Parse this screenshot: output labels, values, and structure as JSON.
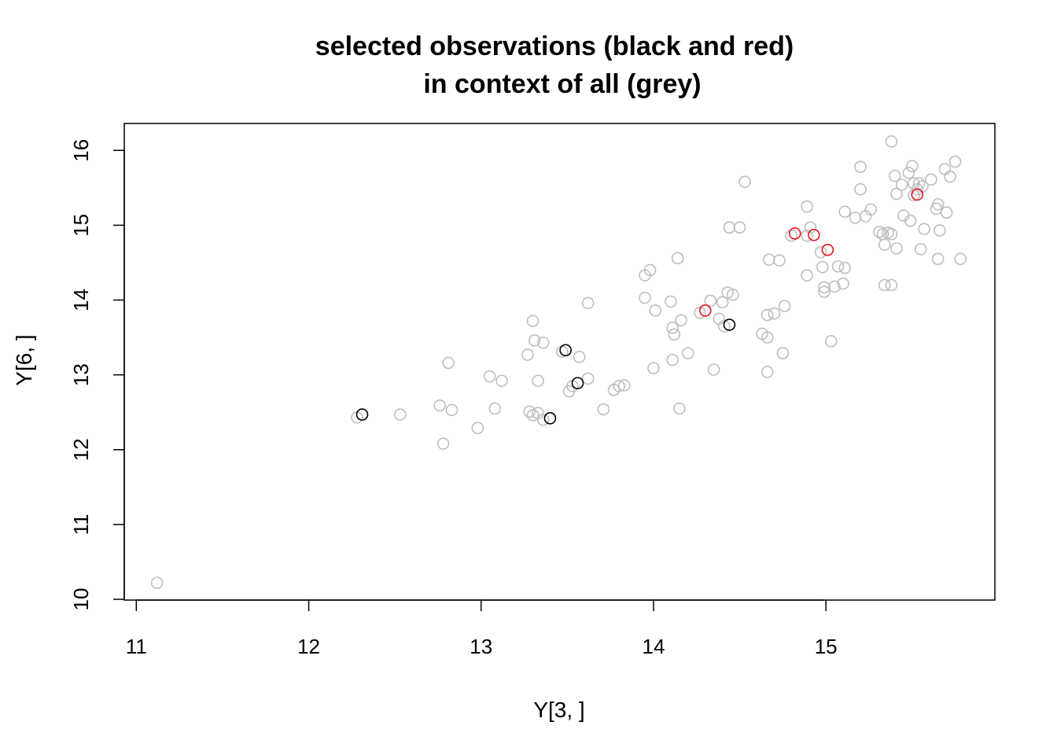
{
  "chart_data": {
    "type": "scatter",
    "title_line1": "selected observations (black and red)",
    "title_line2": "in context of all (grey)",
    "xlabel": "Y[3, ]",
    "ylabel": "Y[6, ]",
    "xlim": [
      10.93,
      15.98
    ],
    "ylim": [
      9.99,
      16.36
    ],
    "x_ticks": [
      "11",
      "12",
      "13",
      "14",
      "15"
    ],
    "y_ticks": [
      "10",
      "11",
      "12",
      "13",
      "14",
      "15",
      "16"
    ],
    "grid": false,
    "colors": {
      "grey": "#bebebe",
      "black": "#000000",
      "red": "#e8141d"
    },
    "series": [
      {
        "color_key": "grey",
        "points": [
          [
            11.12,
            10.22
          ],
          [
            12.28,
            12.43
          ],
          [
            12.53,
            12.47
          ],
          [
            12.76,
            12.59
          ],
          [
            12.78,
            12.08
          ],
          [
            12.81,
            13.16
          ],
          [
            12.83,
            12.53
          ],
          [
            12.98,
            12.29
          ],
          [
            13.05,
            12.98
          ],
          [
            13.08,
            12.55
          ],
          [
            13.12,
            12.92
          ],
          [
            13.27,
            13.27
          ],
          [
            13.28,
            12.51
          ],
          [
            13.3,
            12.46
          ],
          [
            13.3,
            13.72
          ],
          [
            13.31,
            13.46
          ],
          [
            13.33,
            12.49
          ],
          [
            13.33,
            12.92
          ],
          [
            13.36,
            12.4
          ],
          [
            13.36,
            13.43
          ],
          [
            13.47,
            13.31
          ],
          [
            13.51,
            12.78
          ],
          [
            13.53,
            12.85
          ],
          [
            13.57,
            13.24
          ],
          [
            13.62,
            12.95
          ],
          [
            13.62,
            13.96
          ],
          [
            13.71,
            12.54
          ],
          [
            13.77,
            12.8
          ],
          [
            13.8,
            12.85
          ],
          [
            13.83,
            12.86
          ],
          [
            13.95,
            14.33
          ],
          [
            13.95,
            14.03
          ],
          [
            13.98,
            14.4
          ],
          [
            14.0,
            13.09
          ],
          [
            14.01,
            13.86
          ],
          [
            14.1,
            13.98
          ],
          [
            14.11,
            13.63
          ],
          [
            14.12,
            13.54
          ],
          [
            14.11,
            13.2
          ],
          [
            14.14,
            14.56
          ],
          [
            14.15,
            12.55
          ],
          [
            14.16,
            13.73
          ],
          [
            14.2,
            13.29
          ],
          [
            14.27,
            13.83
          ],
          [
            14.33,
            13.99
          ],
          [
            14.35,
            13.07
          ],
          [
            14.38,
            13.75
          ],
          [
            14.4,
            13.97
          ],
          [
            14.41,
            13.65
          ],
          [
            14.43,
            14.1
          ],
          [
            14.44,
            14.97
          ],
          [
            14.46,
            14.07
          ],
          [
            14.5,
            14.97
          ],
          [
            14.53,
            15.58
          ],
          [
            14.63,
            13.55
          ],
          [
            14.66,
            13.8
          ],
          [
            14.66,
            13.5
          ],
          [
            14.66,
            13.04
          ],
          [
            14.67,
            14.54
          ],
          [
            14.7,
            13.82
          ],
          [
            14.73,
            14.53
          ],
          [
            14.75,
            13.29
          ],
          [
            14.76,
            13.92
          ],
          [
            14.8,
            14.86
          ],
          [
            14.89,
            14.33
          ],
          [
            14.89,
            15.25
          ],
          [
            14.89,
            14.86
          ],
          [
            14.91,
            14.97
          ],
          [
            14.97,
            14.64
          ],
          [
            14.98,
            14.44
          ],
          [
            14.99,
            14.17
          ],
          [
            14.99,
            14.11
          ],
          [
            15.03,
            13.45
          ],
          [
            15.05,
            14.18
          ],
          [
            15.07,
            14.45
          ],
          [
            15.1,
            14.22
          ],
          [
            15.11,
            14.43
          ],
          [
            15.11,
            15.18
          ],
          [
            15.17,
            15.1
          ],
          [
            15.2,
            15.48
          ],
          [
            15.2,
            15.78
          ],
          [
            15.23,
            15.12
          ],
          [
            15.26,
            15.21
          ],
          [
            15.31,
            14.91
          ],
          [
            15.33,
            14.88
          ],
          [
            15.34,
            14.74
          ],
          [
            15.34,
            14.2
          ],
          [
            15.36,
            14.9
          ],
          [
            15.38,
            14.2
          ],
          [
            15.38,
            14.88
          ],
          [
            15.38,
            16.12
          ],
          [
            15.4,
            15.66
          ],
          [
            15.41,
            15.42
          ],
          [
            15.41,
            14.69
          ],
          [
            15.44,
            15.54
          ],
          [
            15.45,
            15.13
          ],
          [
            15.48,
            15.7
          ],
          [
            15.49,
            15.06
          ],
          [
            15.5,
            15.79
          ],
          [
            15.51,
            15.4
          ],
          [
            15.51,
            15.56
          ],
          [
            15.53,
            15.48
          ],
          [
            15.54,
            15.56
          ],
          [
            15.55,
            14.68
          ],
          [
            15.56,
            15.52
          ],
          [
            15.57,
            14.95
          ],
          [
            15.61,
            15.61
          ],
          [
            15.64,
            15.22
          ],
          [
            15.65,
            15.28
          ],
          [
            15.65,
            14.55
          ],
          [
            15.66,
            14.93
          ],
          [
            15.69,
            15.75
          ],
          [
            15.7,
            15.17
          ],
          [
            15.72,
            15.65
          ],
          [
            15.75,
            15.85
          ],
          [
            15.78,
            14.55
          ]
        ]
      },
      {
        "color_key": "black",
        "points": [
          [
            12.31,
            12.47
          ],
          [
            13.4,
            12.42
          ],
          [
            13.49,
            13.33
          ],
          [
            13.56,
            12.89
          ],
          [
            14.44,
            13.67
          ]
        ]
      },
      {
        "color_key": "red",
        "points": [
          [
            14.3,
            13.86
          ],
          [
            14.82,
            14.89
          ],
          [
            14.93,
            14.87
          ],
          [
            15.01,
            14.67
          ],
          [
            15.53,
            15.41
          ]
        ]
      }
    ]
  }
}
